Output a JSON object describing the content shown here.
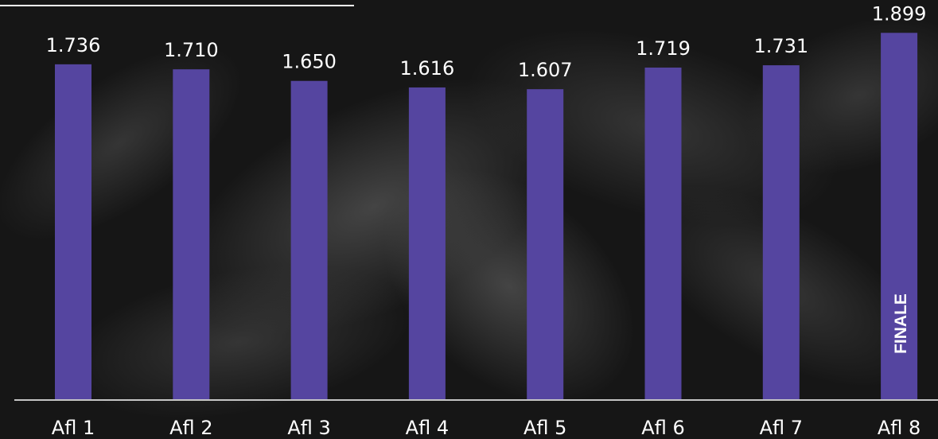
{
  "chart_data": {
    "type": "bar",
    "title": "",
    "categories": [
      "Afl 1",
      "Afl 2",
      "Afl 3",
      "Afl 4",
      "Afl 5",
      "Afl 6",
      "Afl 7",
      "Afl 8"
    ],
    "values": [
      1736,
      1710,
      1650,
      1616,
      1607,
      1719,
      1731,
      1899
    ],
    "value_labels": [
      "1.736",
      "1.710",
      "1.650",
      "1.616",
      "1.607",
      "1.719",
      "1.731",
      "1.899"
    ],
    "annotations": [
      {
        "category": "Afl 8",
        "text": "FINALE"
      }
    ],
    "bar_color": "#5545a0",
    "axis_color": "#ffffff",
    "text_color": "#ffffff",
    "annotation_color": "#ffffff",
    "xlabel": "",
    "ylabel": "",
    "ylim": [
      0,
      1925
    ],
    "grid": false
  }
}
